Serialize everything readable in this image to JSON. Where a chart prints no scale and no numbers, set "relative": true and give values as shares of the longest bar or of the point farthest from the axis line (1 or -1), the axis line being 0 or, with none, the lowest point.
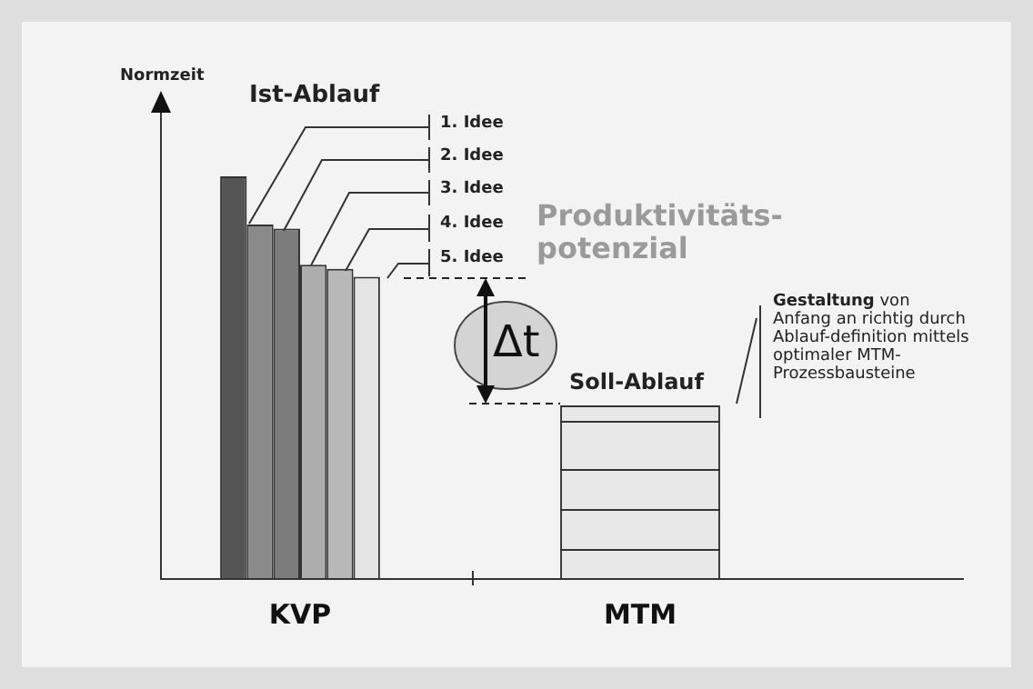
{
  "chart_data": {
    "type": "bar",
    "relative": true,
    "categories": [
      "KVP",
      "MTM"
    ],
    "series": [
      {
        "colors": [
          "#555555",
          "#e8e8e8"
        ],
        "values": [
          1,
          0.43
        ]
      },
      {
        "color": "#8a8a8a",
        "values": [
          0.88,
          null
        ]
      },
      {
        "color": "#7c7c7c",
        "values": [
          0.87,
          null
        ]
      },
      {
        "color": "#adadad",
        "values": [
          0.78,
          null
        ]
      },
      {
        "color": "#b8b8b8",
        "values": [
          0.77,
          null
        ]
      },
      {
        "color": "#e4e4e4",
        "values": [
          0.75,
          null
        ]
      }
    ],
    "annotations": [
      "Normzeit",
      "Ist-Ablauf",
      "1. Idee",
      "2. Idee",
      "3. Idee",
      "4. Idee",
      "5. Idee",
      "Produktivitäts-potenzial",
      "Δt",
      "Soll-Ablauf",
      "Gestaltung von Anfang an richtig durch Ablauf-definition mittels optimaler MTM-Prozessbausteine"
    ],
    "legend": false
  }
}
